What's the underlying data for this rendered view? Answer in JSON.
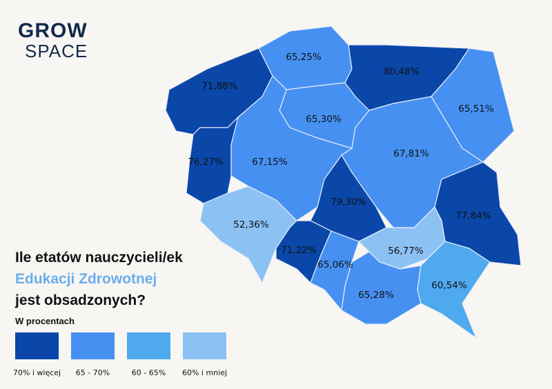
{
  "logo": {
    "line1": "GROW",
    "line2": "SPACE"
  },
  "title": {
    "line1": "Ile etatów nauczycieli/ek",
    "line2": "Edukacji Zdrowotnej",
    "line3": "jest obsadzonych?"
  },
  "legend": {
    "subtitle": "W procentach",
    "items": [
      {
        "label": "70% i więcej",
        "color": "#0a47a9"
      },
      {
        "label": "65 - 70%",
        "color": "#4690f2"
      },
      {
        "label": "60 - 65%",
        "color": "#4fa9ee"
      },
      {
        "label": "60% i mniej",
        "color": "#8cc1f4"
      }
    ]
  },
  "regions": [
    {
      "id": "zachodniopomorskie",
      "value": "71,88%",
      "class": 0
    },
    {
      "id": "pomorskie",
      "value": "65,25%",
      "class": 1
    },
    {
      "id": "warminsko-mazurskie",
      "value": "80,48%",
      "class": 0
    },
    {
      "id": "podlaskie",
      "value": "65,51%",
      "class": 1
    },
    {
      "id": "kujawsko-pomorskie",
      "value": "65,30%",
      "class": 1
    },
    {
      "id": "mazowieckie",
      "value": "67,81%",
      "class": 1
    },
    {
      "id": "lubuskie",
      "value": "76,27%",
      "class": 0
    },
    {
      "id": "wielkopolskie",
      "value": "67,15%",
      "class": 1
    },
    {
      "id": "lodzkie",
      "value": "79,30%",
      "class": 0
    },
    {
      "id": "lubelskie",
      "value": "77,84%",
      "class": 0
    },
    {
      "id": "dolnoslaskie",
      "value": "52,36%",
      "class": 3
    },
    {
      "id": "opolskie",
      "value": "71,22%",
      "class": 0
    },
    {
      "id": "slaskie",
      "value": "65,06%",
      "class": 1
    },
    {
      "id": "swietokrzyskie",
      "value": "56,77%",
      "class": 3
    },
    {
      "id": "malopolskie",
      "value": "65,28%",
      "class": 1
    },
    {
      "id": "podkarpackie",
      "value": "60,54%",
      "class": 2
    }
  ]
}
